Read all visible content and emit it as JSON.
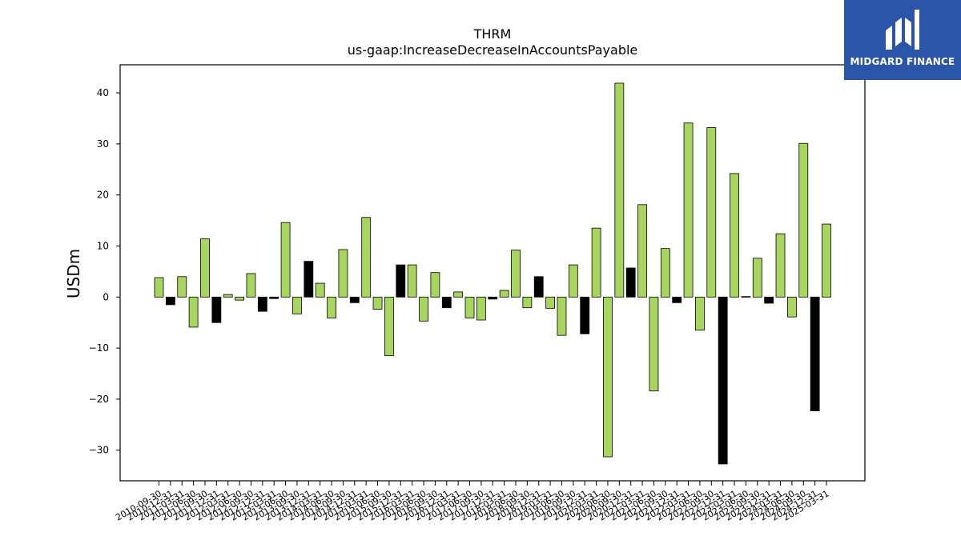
{
  "chart_data": {
    "type": "bar",
    "title": "THRM",
    "subtitle": "us-gaap:IncreaseDecreaseInAccountsPayable",
    "xlabel": "",
    "ylabel": "USDm",
    "ylim": [
      -36,
      45.5
    ],
    "yticks": [
      40,
      30,
      20,
      10,
      0,
      -10,
      -20,
      -30
    ],
    "ytick_labels": [
      "40",
      "30",
      "20",
      "10",
      "0",
      "−10",
      "−20",
      "−30"
    ],
    "grid": false,
    "colors": {
      "primary": "#a8d560",
      "alternate": "#000000",
      "edge": "#000000"
    },
    "categories": [
      "2010-09-30",
      "2010-12-31",
      "2011-03-31",
      "2011-06-30",
      "2011-09-30",
      "2011-12-31",
      "2012-03-31",
      "2012-06-30",
      "2012-09-30",
      "2012-12-31",
      "2013-03-31",
      "2013-06-30",
      "2013-09-30",
      "2013-12-31",
      "2014-03-31",
      "2014-06-30",
      "2014-09-30",
      "2014-12-31",
      "2015-03-31",
      "2015-06-30",
      "2015-09-30",
      "2015-12-31",
      "2016-03-31",
      "2016-06-30",
      "2016-09-30",
      "2016-12-31",
      "2017-03-31",
      "2017-06-30",
      "2017-09-30",
      "2017-12-31",
      "2018-03-31",
      "2018-06-30",
      "2018-09-30",
      "2018-12-31",
      "2019-03-31",
      "2019-06-30",
      "2019-09-30",
      "2019-12-31",
      "2020-03-31",
      "2020-06-30",
      "2020-09-30",
      "2020-12-31",
      "2021-03-31",
      "2021-06-30",
      "2021-09-30",
      "2021-12-31",
      "2022-03-31",
      "2022-06-30",
      "2022-09-30",
      "2022-12-31",
      "2023-03-31",
      "2023-06-30",
      "2023-09-30",
      "2023-12-31",
      "2024-03-31",
      "2024-06-30",
      "2024-09-30",
      "2024-12-31",
      "2025-03-31"
    ],
    "values": [
      3.8,
      -1.5,
      4.0,
      -5.9,
      11.4,
      -5.0,
      0.5,
      -0.6,
      4.6,
      -2.8,
      -0.3,
      14.6,
      -3.3,
      7.0,
      2.7,
      -4.1,
      9.3,
      -1.1,
      15.6,
      -2.4,
      -11.5,
      6.3,
      6.3,
      -4.7,
      4.8,
      -2.1,
      1.0,
      -4.1,
      -4.5,
      -0.4,
      1.3,
      9.2,
      -2.1,
      4.0,
      -2.2,
      -7.5,
      6.3,
      -7.2,
      13.5,
      -31.3,
      41.9,
      5.7,
      18.1,
      -18.4,
      9.5,
      -1.1,
      34.1,
      -6.5,
      33.2,
      -32.7,
      24.2,
      0.1,
      7.6,
      -1.2,
      12.4,
      -3.9,
      30.1,
      -22.3,
      14.3
    ],
    "bar_colors": [
      "g",
      "k",
      "g",
      "g",
      "g",
      "k",
      "g",
      "g",
      "g",
      "k",
      "k",
      "g",
      "g",
      "k",
      "g",
      "g",
      "g",
      "k",
      "g",
      "g",
      "g",
      "k",
      "g",
      "g",
      "g",
      "k",
      "g",
      "g",
      "g",
      "k",
      "g",
      "g",
      "g",
      "k",
      "g",
      "g",
      "g",
      "k",
      "g",
      "g",
      "g",
      "k",
      "g",
      "g",
      "g",
      "k",
      "g",
      "g",
      "g",
      "k",
      "g",
      "k",
      "g",
      "k",
      "g",
      "g",
      "g",
      "k",
      "g"
    ]
  },
  "logo": {
    "text": "MIDGARD FINANCE",
    "background": "#2a55a8"
  }
}
